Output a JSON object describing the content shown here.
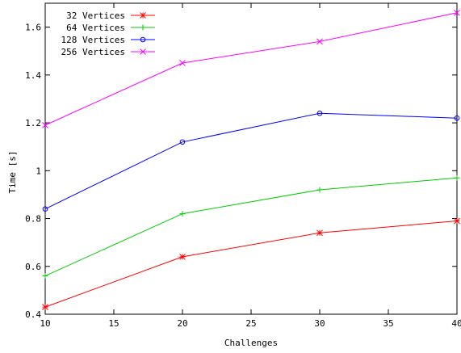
{
  "chart_data": {
    "type": "line",
    "xlabel": "Challenges",
    "ylabel": "Time [s]",
    "xlim": [
      10,
      40
    ],
    "ylim": [
      0.4,
      1.7
    ],
    "x_ticks": [
      10,
      15,
      20,
      25,
      30,
      35,
      40
    ],
    "y_ticks": [
      0.4,
      0.6,
      0.8,
      1,
      1.2,
      1.4,
      1.6
    ],
    "x_tick_labels": [
      "10",
      "15",
      "20",
      "25",
      "30",
      "35",
      "40"
    ],
    "y_tick_labels": [
      "0.4",
      "0.6",
      "0.8",
      "1",
      "1.2",
      "1.4",
      "1.6"
    ],
    "grid": false,
    "legend_position": "top-left",
    "x": [
      10,
      20,
      30,
      40
    ],
    "series": [
      {
        "name": "32 Vertices",
        "color": "#ff0000",
        "marker": "asterisk",
        "values": [
          0.43,
          0.64,
          0.74,
          0.79
        ]
      },
      {
        "name": "64 Vertices",
        "color": "#00cc00",
        "marker": "plus",
        "values": [
          0.56,
          0.82,
          0.92,
          0.97
        ]
      },
      {
        "name": "128 Vertices",
        "color": "#0000ff",
        "marker": "circle",
        "values": [
          0.84,
          1.12,
          1.24,
          1.22
        ]
      },
      {
        "name": "256 Vertices",
        "color": "#ff00ff",
        "marker": "cross",
        "values": [
          1.19,
          1.45,
          1.54,
          1.66
        ]
      }
    ]
  }
}
